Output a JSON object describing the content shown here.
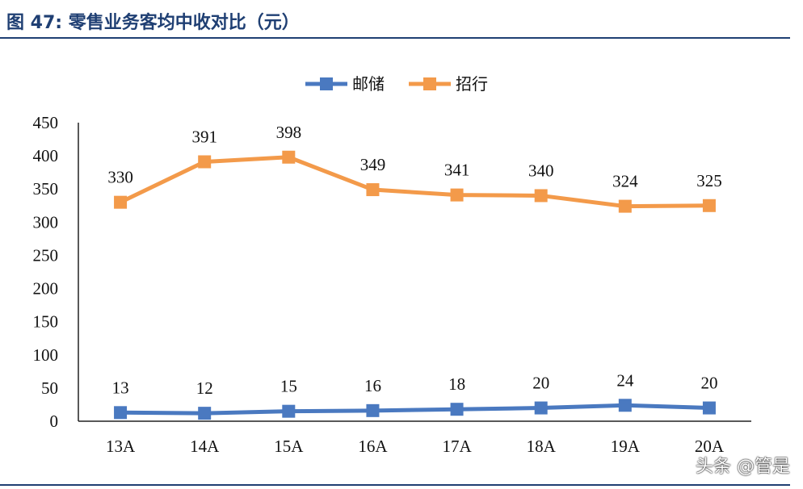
{
  "figure": {
    "label": "图 47:",
    "title": "零售业务客均中收对比（元）",
    "watermark": "头条 @管是"
  },
  "chart_data": {
    "type": "line",
    "categories": [
      "13A",
      "14A",
      "15A",
      "16A",
      "17A",
      "18A",
      "19A",
      "20A"
    ],
    "series": [
      {
        "name": "邮储",
        "color": "#4a79c0",
        "values": [
          13,
          12,
          15,
          16,
          18,
          20,
          24,
          20
        ]
      },
      {
        "name": "招行",
        "color": "#f39a4a",
        "values": [
          330,
          391,
          398,
          349,
          341,
          340,
          324,
          325
        ]
      }
    ],
    "ylim": [
      0,
      450
    ],
    "yticks": [
      "0",
      "50",
      "100",
      "150",
      "200",
      "250",
      "300",
      "350",
      "400",
      "450"
    ],
    "legend": "top-center",
    "grid": false,
    "marker": "square"
  }
}
